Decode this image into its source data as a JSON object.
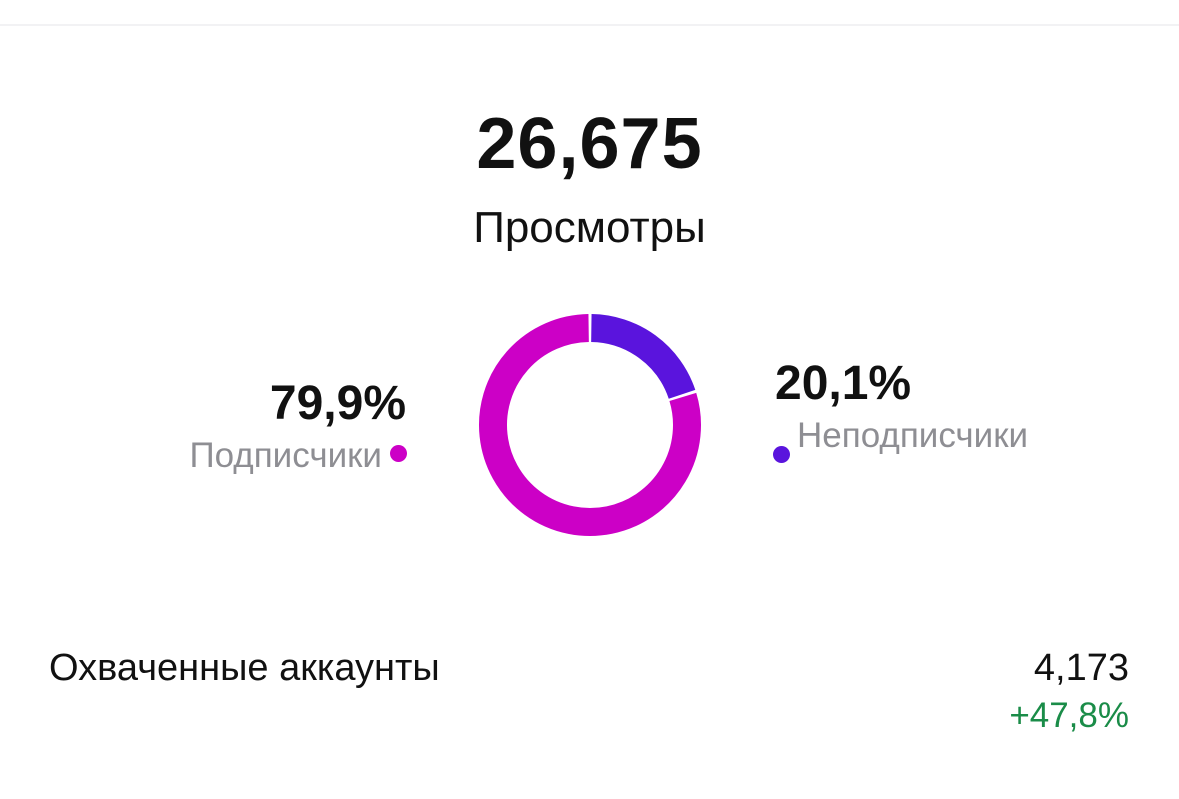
{
  "header": {
    "total_value": "26,675",
    "total_label": "Просмотры"
  },
  "legend": {
    "followers_percent": "79,9%",
    "followers_label": "Подписчики",
    "non_followers_percent": "20,1%",
    "non_followers_label": "Неподписчики"
  },
  "reach": {
    "label": "Охваченные аккаунты",
    "value": "4,173",
    "change": "+47,8%"
  },
  "colors": {
    "followers": "#cc00c6",
    "non_followers": "#5a14dd",
    "positive_change": "#1a8c48",
    "muted_text": "#8e8e93"
  },
  "chart_data": {
    "type": "pie",
    "variant": "donut",
    "categories": [
      "Подписчики",
      "Неподписчики"
    ],
    "values": [
      79.9,
      20.1
    ],
    "unit": "%",
    "title": "",
    "legend": "sides"
  }
}
